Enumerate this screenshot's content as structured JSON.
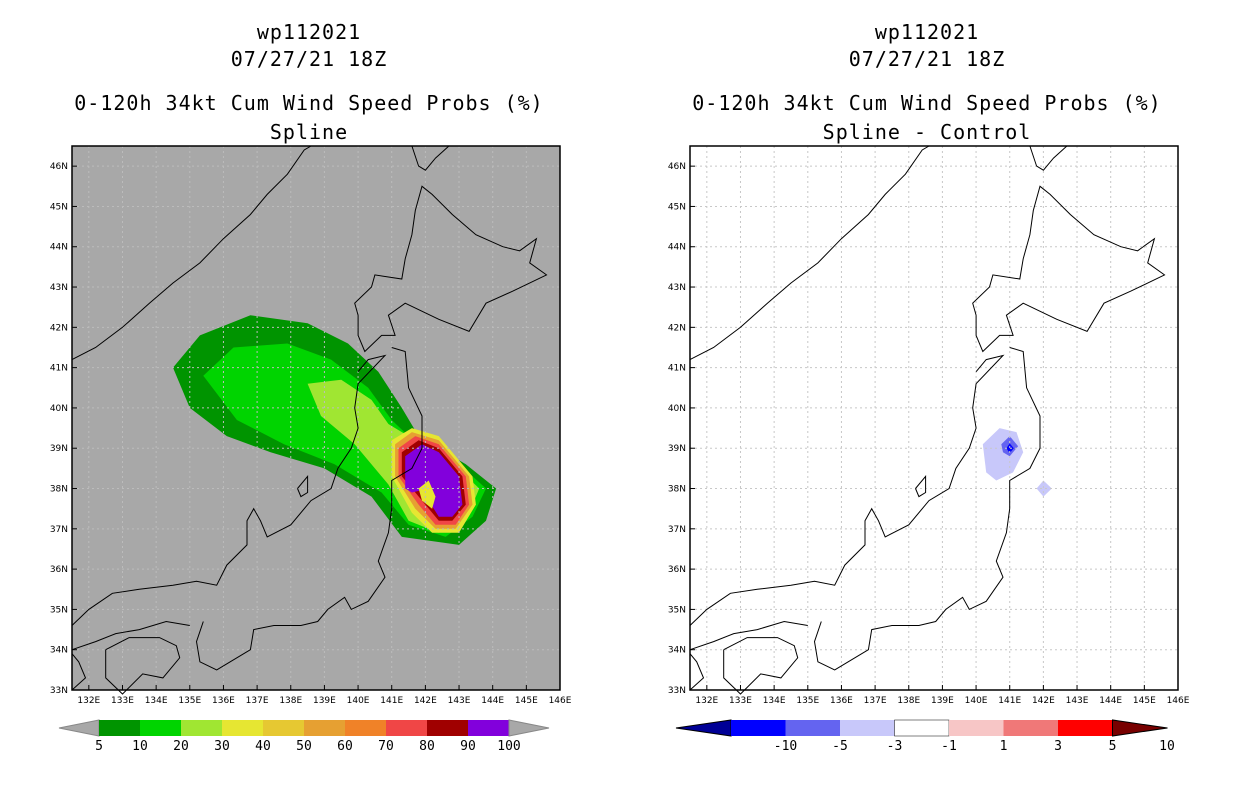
{
  "colors": {
    "land_gray": "#a8a8a8",
    "grid": "#c8c8c8",
    "coast": "#000000",
    "prob": [
      "#009400",
      "#00d400",
      "#a0e632",
      "#e6e632",
      "#e6c832",
      "#e6a032",
      "#f08228",
      "#f04646",
      "#a00000",
      "#8200dc"
    ],
    "diff_neg": [
      "#000096",
      "#0000ff",
      "#6464f0",
      "#c8c8fa"
    ],
    "diff_mid": "#ffffff",
    "diff_pos": [
      "#f7c6c6",
      "#f07878",
      "#ff0000",
      "#780000"
    ]
  },
  "left_panel": {
    "storm_id": "wp112021",
    "datetime": "07/27/21 18Z",
    "product": "0-120h 34kt Cum Wind Speed Probs (%)",
    "subtitle": "Spline",
    "colorbar_labels": [
      "5",
      "10",
      "20",
      "30",
      "40",
      "50",
      "60",
      "70",
      "80",
      "90",
      "100"
    ]
  },
  "right_panel": {
    "storm_id": "wp112021",
    "datetime": "07/27/21 18Z",
    "product": "0-120h 34kt Cum Wind Speed Probs (%)",
    "subtitle": "Spline - Control",
    "colorbar_labels": [
      "-10",
      "-5",
      "-3",
      "-1",
      "1",
      "3",
      "5",
      "10"
    ]
  },
  "lat_labels": [
    "33N",
    "34N",
    "35N",
    "36N",
    "37N",
    "38N",
    "39N",
    "40N",
    "41N",
    "42N",
    "43N",
    "44N",
    "45N",
    "46N"
  ],
  "lon_labels": [
    "132E",
    "133E",
    "134E",
    "135E",
    "136E",
    "137E",
    "138E",
    "139E",
    "140E",
    "141E",
    "142E",
    "143E",
    "144E",
    "145E",
    "146E"
  ]
}
